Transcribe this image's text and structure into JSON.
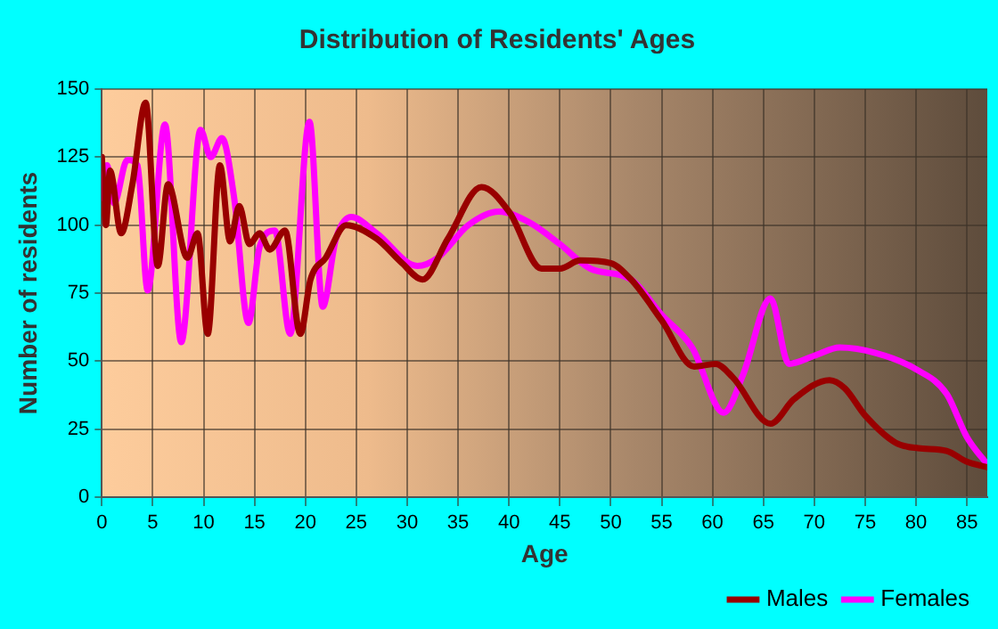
{
  "chart_data": {
    "type": "line",
    "title": "Distribution of Residents' Ages",
    "xlabel": "Age",
    "ylabel": "Number of residents",
    "xlim": [
      0,
      87
    ],
    "xticks": [
      0,
      5,
      10,
      15,
      20,
      25,
      30,
      35,
      40,
      45,
      50,
      55,
      60,
      65,
      70,
      75,
      80,
      85
    ],
    "ylim": [
      0,
      150
    ],
    "yticks": [
      0,
      25,
      50,
      75,
      100,
      125,
      150
    ],
    "grid": true,
    "legend": "bottom right",
    "marker": "none",
    "line_style": "solid",
    "series": [
      {
        "name": "Males",
        "color": "#990000",
        "x": [
          0,
          0.4,
          0.8,
          1.9,
          3,
          4.3,
          5.5,
          6.5,
          8.4,
          9.4,
          10.4,
          11.6,
          12.6,
          13.5,
          14.5,
          15.5,
          16.5,
          18,
          19.5,
          20.5,
          22,
          24,
          27,
          29.5,
          31.5,
          34,
          37.3,
          40,
          43.2,
          45,
          47,
          50,
          52,
          55,
          58.2,
          60.3,
          62,
          65.7,
          68,
          71.5,
          73,
          75,
          78,
          80.2,
          83,
          85,
          87
        ],
        "values": [
          125,
          100,
          120,
          97,
          115,
          145,
          85,
          115,
          88,
          97,
          60,
          122,
          94,
          107,
          93,
          97,
          91,
          98,
          60,
          80,
          88,
          100,
          95,
          86,
          80,
          95,
          114,
          105,
          84,
          84,
          87,
          86,
          80,
          65,
          48,
          49,
          44,
          27,
          36,
          43,
          40,
          30,
          20,
          18,
          17,
          13,
          11
        ]
      },
      {
        "name": "Females",
        "color": "#ff00ff",
        "x": [
          0,
          0.5,
          1.2,
          2.5,
          3.5,
          4.5,
          6.2,
          7.8,
          9.7,
          10.7,
          11.8,
          13,
          14.4,
          15.5,
          17,
          18.5,
          20.4,
          21.7,
          23,
          24.5,
          27,
          31,
          33,
          36,
          39,
          42,
          45,
          48,
          52,
          55,
          58,
          61.1,
          63,
          65.7,
          67.5,
          70,
          72.5,
          76,
          80,
          83,
          85,
          87
        ],
        "values": [
          110,
          122,
          108,
          124,
          122,
          76,
          137,
          57,
          135,
          125,
          132,
          110,
          64,
          92,
          98,
          60,
          138,
          70,
          95,
          103,
          97,
          85,
          88,
          100,
          105,
          101,
          93,
          84,
          80,
          67,
          55,
          31,
          45,
          73,
          49,
          52,
          55,
          53,
          47,
          38,
          22,
          12
        ]
      }
    ]
  }
}
